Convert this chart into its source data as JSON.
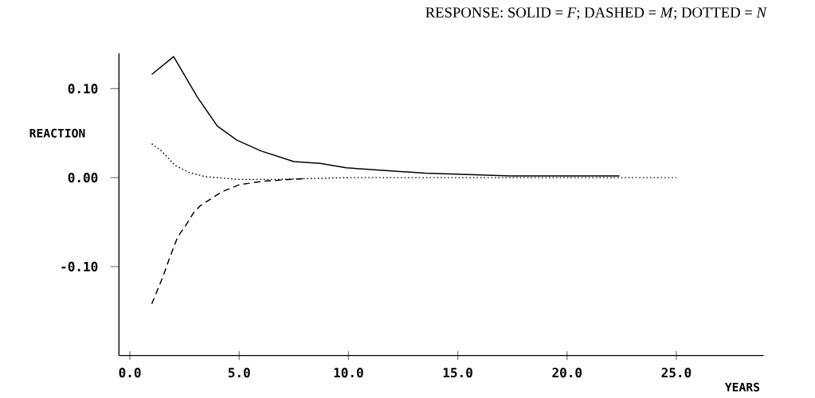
{
  "chart_data": {
    "type": "line",
    "title": "RESPONSE: SOLID = *F*; DASHED = *M*; DOTTED = *N*",
    "xlabel": "YEARS",
    "ylabel": "REACTION",
    "xlim": [
      -0.5,
      29
    ],
    "ylim": [
      -0.2,
      0.14
    ],
    "xticks": [
      {
        "value": 0,
        "label": "0.0"
      },
      {
        "value": 5,
        "label": "5.0"
      },
      {
        "value": 10,
        "label": "10.0"
      },
      {
        "value": 15,
        "label": "15.0"
      },
      {
        "value": 20,
        "label": "20.0"
      },
      {
        "value": 25,
        "label": "25.0"
      }
    ],
    "yticks": [
      {
        "value": -0.1,
        "label": "-0.10"
      },
      {
        "value": 0,
        "label": "0.00"
      },
      {
        "value": 0.1,
        "label": "0.10"
      }
    ],
    "marker": "none",
    "series": [
      {
        "color": "#000000",
        "line_style": "solid",
        "x": [
          1,
          2,
          3.1,
          4,
          4.9,
          6,
          7.5,
          8.7,
          9.9,
          10.5,
          13.5,
          17.4,
          22.4
        ],
        "values": [
          0.116,
          0.136,
          0.09,
          0.058,
          0.042,
          0.03,
          0.018,
          0.016,
          0.011,
          0.01,
          0.005,
          0.002,
          0.002
        ]
      },
      {
        "color": "#000000",
        "line_style": "dashed",
        "x": [
          1,
          1.5,
          1.85,
          2.2,
          2.55,
          2.9,
          3.2,
          4.2,
          5,
          6.1,
          8
        ],
        "values": [
          -0.142,
          -0.112,
          -0.088,
          -0.066,
          -0.054,
          -0.04,
          -0.032,
          -0.016,
          -0.008,
          -0.004,
          -0.001
        ]
      },
      {
        "color": "#000000",
        "line_style": "dotted",
        "x": [
          1,
          1.45,
          1.75,
          2.05,
          2.7,
          3.45,
          5,
          6.8,
          8.3,
          10,
          25
        ],
        "values": [
          0.038,
          0.03,
          0.022,
          0.014,
          0.006,
          0.001,
          -0.002,
          -0.002,
          -0.001,
          0,
          0
        ]
      }
    ]
  }
}
